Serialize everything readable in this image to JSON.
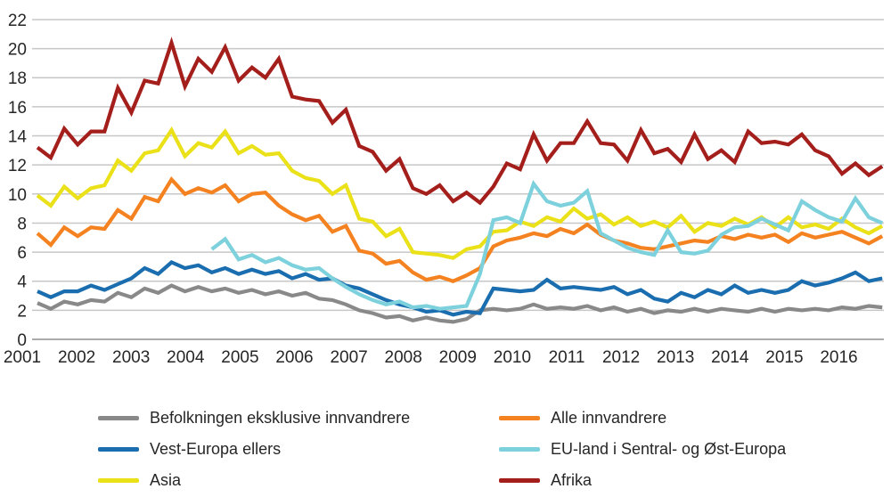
{
  "chart_data": {
    "type": "line",
    "title": "",
    "xlabel": "",
    "ylabel": "",
    "x_frequency": "quarterly",
    "x_tick_labels": [
      "2001",
      "2002",
      "2003",
      "2004",
      "2005",
      "2006",
      "2007",
      "2008",
      "2009",
      "2010",
      "2011",
      "2012",
      "2013",
      "2014",
      "2015",
      "2016"
    ],
    "yticks": [
      0,
      2,
      4,
      6,
      8,
      10,
      12,
      14,
      16,
      18,
      20,
      22
    ],
    "ylim": [
      0,
      22
    ],
    "grid": "horizontal",
    "legend_position": "bottom-two-columns",
    "legend_columns": [
      [
        0,
        2,
        4
      ],
      [
        1,
        3,
        5
      ]
    ],
    "series": [
      {
        "id": "befolkningen-eksklusive-innvandrere",
        "name": "Befolkningen eksklusive innvandrere",
        "color": "#898989",
        "values": [
          2.5,
          2.1,
          2.6,
          2.4,
          2.7,
          2.6,
          3.2,
          2.9,
          3.5,
          3.2,
          3.7,
          3.3,
          3.6,
          3.3,
          3.5,
          3.2,
          3.4,
          3.1,
          3.3,
          3.0,
          3.2,
          2.8,
          2.7,
          2.4,
          2.0,
          1.8,
          1.5,
          1.6,
          1.3,
          1.5,
          1.3,
          1.2,
          1.4,
          2.0,
          2.1,
          2.0,
          2.1,
          2.4,
          2.1,
          2.2,
          2.1,
          2.3,
          2.0,
          2.2,
          1.9,
          2.1,
          1.8,
          2.0,
          1.9,
          2.1,
          1.9,
          2.1,
          2.0,
          1.9,
          2.1,
          1.9,
          2.1,
          2.0,
          2.1,
          2.0,
          2.2,
          2.1,
          2.3,
          2.2
        ]
      },
      {
        "id": "alle-innvandrere",
        "name": "Alle innvandrere",
        "color": "#F58220",
        "values": [
          7.3,
          6.5,
          7.7,
          7.1,
          7.7,
          7.6,
          8.9,
          8.3,
          9.8,
          9.5,
          11.0,
          10.0,
          10.4,
          10.1,
          10.6,
          9.5,
          10.0,
          10.1,
          9.2,
          8.6,
          8.2,
          8.5,
          7.4,
          7.8,
          6.1,
          5.9,
          5.2,
          5.4,
          4.6,
          4.1,
          4.3,
          4.0,
          4.4,
          4.9,
          6.4,
          6.8,
          7.0,
          7.3,
          7.1,
          7.6,
          7.3,
          7.9,
          7.2,
          6.8,
          6.6,
          6.3,
          6.2,
          6.4,
          6.6,
          6.8,
          6.7,
          7.1,
          6.9,
          7.2,
          7.0,
          7.2,
          6.7,
          7.3,
          7.0,
          7.2,
          7.4,
          7.0,
          6.6,
          7.1
        ]
      },
      {
        "id": "vest-europa-ellers",
        "name": "Vest-Europa ellers",
        "color": "#1A6DAE",
        "values": [
          3.3,
          2.9,
          3.3,
          3.3,
          3.7,
          3.4,
          3.8,
          4.2,
          4.9,
          4.5,
          5.3,
          4.9,
          5.1,
          4.6,
          4.9,
          4.5,
          4.8,
          4.5,
          4.7,
          4.2,
          4.5,
          4.1,
          4.2,
          3.7,
          3.5,
          3.1,
          2.7,
          2.4,
          2.2,
          1.9,
          2.0,
          1.7,
          1.9,
          1.8,
          3.5,
          3.4,
          3.3,
          3.4,
          4.1,
          3.5,
          3.6,
          3.5,
          3.4,
          3.6,
          3.1,
          3.4,
          2.8,
          2.6,
          3.2,
          2.9,
          3.4,
          3.1,
          3.7,
          3.2,
          3.4,
          3.2,
          3.4,
          4.0,
          3.7,
          3.9,
          4.2,
          4.6,
          4.0,
          4.2
        ]
      },
      {
        "id": "eu-land-i-sentral-og-ost-europa",
        "name": "EU-land i Sentral- og Øst-Europa",
        "color": "#7DD1DC",
        "values": [
          null,
          null,
          null,
          null,
          null,
          null,
          null,
          null,
          null,
          null,
          null,
          null,
          null,
          6.2,
          6.9,
          5.5,
          5.8,
          5.3,
          5.6,
          5.1,
          4.8,
          4.9,
          4.2,
          3.6,
          3.1,
          2.7,
          2.4,
          2.6,
          2.2,
          2.3,
          2.1,
          2.2,
          2.3,
          4.5,
          8.2,
          8.4,
          8.0,
          10.7,
          9.5,
          9.2,
          9.4,
          10.2,
          7.3,
          6.8,
          6.3,
          6.0,
          5.8,
          7.5,
          6.0,
          5.9,
          6.1,
          7.2,
          7.7,
          7.8,
          8.3,
          7.9,
          7.5,
          9.5,
          8.9,
          8.4,
          8.1,
          9.7,
          8.4,
          8.0
        ]
      },
      {
        "id": "asia",
        "name": "Asia",
        "color": "#EBE118",
        "values": [
          9.9,
          9.2,
          10.5,
          9.7,
          10.4,
          10.6,
          12.3,
          11.6,
          12.8,
          13.0,
          14.4,
          12.6,
          13.5,
          13.2,
          14.3,
          12.8,
          13.3,
          12.7,
          12.8,
          11.6,
          11.1,
          10.9,
          10.0,
          10.6,
          8.3,
          8.1,
          7.1,
          7.6,
          6.0,
          5.9,
          5.8,
          5.6,
          6.2,
          6.4,
          7.4,
          7.5,
          8.1,
          7.8,
          8.4,
          8.1,
          9.0,
          8.3,
          8.6,
          7.9,
          8.4,
          7.8,
          8.1,
          7.7,
          8.5,
          7.4,
          8.0,
          7.8,
          8.3,
          7.9,
          8.4,
          7.7,
          8.4,
          7.7,
          7.9,
          7.6,
          8.3,
          7.7,
          7.3,
          7.8
        ]
      },
      {
        "id": "afrika",
        "name": "Afrika",
        "color": "#A41F1B",
        "values": [
          13.2,
          12.5,
          14.5,
          13.4,
          14.3,
          14.3,
          17.3,
          15.6,
          17.8,
          17.6,
          20.4,
          17.4,
          19.3,
          18.4,
          20.1,
          17.8,
          18.7,
          18.0,
          19.3,
          16.7,
          16.5,
          16.4,
          14.9,
          15.8,
          13.3,
          12.9,
          11.6,
          12.4,
          10.4,
          10.0,
          10.6,
          9.5,
          10.1,
          9.4,
          10.5,
          12.1,
          11.7,
          14.1,
          12.3,
          13.5,
          13.5,
          15.0,
          13.5,
          13.4,
          12.3,
          14.4,
          12.8,
          13.1,
          12.2,
          14.1,
          12.4,
          13.0,
          12.2,
          14.3,
          13.5,
          13.6,
          13.4,
          14.1,
          13.0,
          12.6,
          11.4,
          12.1,
          11.3,
          11.9
        ]
      }
    ],
    "draw_order": [
      0,
      2,
      1,
      4,
      3,
      5
    ],
    "gridline_color": "#C7C7C7",
    "zeroline_color": "#8F8F8F"
  }
}
